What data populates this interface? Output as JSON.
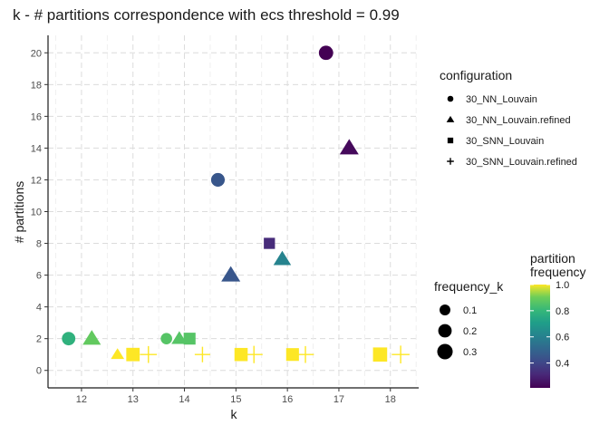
{
  "chart_data": {
    "type": "scatter",
    "title": "k - # partitions correspondence with ecs threshold = 0.99",
    "xlabel": "k",
    "ylabel": "# partitions",
    "xlim": [
      11.35,
      18.55
    ],
    "ylim": [
      -1.1,
      21.1
    ],
    "x_ticks": [
      "12",
      "13",
      "14",
      "15",
      "16",
      "17",
      "18"
    ],
    "y_ticks": [
      "0",
      "2",
      "4",
      "6",
      "8",
      "10",
      "12",
      "14",
      "16",
      "18",
      "20"
    ],
    "grid": true,
    "legend_shape": {
      "title": "configuration",
      "entries": [
        {
          "label": "30_NN_Louvain",
          "shape": "circle"
        },
        {
          "label": "30_NN_Louvain.refined",
          "shape": "triangle"
        },
        {
          "label": "30_SNN_Louvain",
          "shape": "square"
        },
        {
          "label": "30_SNN_Louvain.refined",
          "shape": "plus"
        }
      ]
    },
    "legend_size": {
      "title": "frequency_k",
      "entries": [
        {
          "label": "0.1",
          "value": 0.1
        },
        {
          "label": "0.2",
          "value": 0.2
        },
        {
          "label": "0.3",
          "value": 0.3
        }
      ]
    },
    "legend_color": {
      "title_line1": "partition",
      "title_line2": "frequency",
      "ticks": [
        "0.4",
        "0.6",
        "0.8",
        "1.0"
      ],
      "range": [
        0.21,
        1.0
      ],
      "colormap": "viridis"
    },
    "points": [
      {
        "config": "30_NN_Louvain",
        "x": 16.75,
        "y": 20,
        "freq_k": 0.24,
        "partition_freq": 0.21
      },
      {
        "config": "30_NN_Louvain.refined",
        "x": 17.2,
        "y": 14,
        "freq_k": 0.25,
        "partition_freq": 0.23
      },
      {
        "config": "30_NN_Louvain",
        "x": 14.65,
        "y": 12,
        "freq_k": 0.21,
        "partition_freq": 0.45
      },
      {
        "config": "30_SNN_Louvain",
        "x": 15.65,
        "y": 8,
        "freq_k": 0.13,
        "partition_freq": 0.32
      },
      {
        "config": "30_NN_Louvain.refined",
        "x": 14.9,
        "y": 6,
        "freq_k": 0.25,
        "partition_freq": 0.45
      },
      {
        "config": "30_NN_Louvain.refined",
        "x": 15.9,
        "y": 7,
        "freq_k": 0.2,
        "partition_freq": 0.61
      },
      {
        "config": "30_NN_Louvain",
        "x": 11.75,
        "y": 2,
        "freq_k": 0.2,
        "partition_freq": 0.78
      },
      {
        "config": "30_NN_Louvain.refined",
        "x": 12.2,
        "y": 2,
        "freq_k": 0.22,
        "partition_freq": 0.88
      },
      {
        "config": "30_NN_Louvain.refined",
        "x": 12.7,
        "y": 1,
        "freq_k": 0.08,
        "partition_freq": 1.0
      },
      {
        "config": "30_SNN_Louvain",
        "x": 13.0,
        "y": 1,
        "freq_k": 0.23,
        "partition_freq": 1.0
      },
      {
        "config": "30_SNN_Louvain.refined",
        "x": 13.3,
        "y": 1,
        "freq_k": 0.26,
        "partition_freq": 1.0
      },
      {
        "config": "30_NN_Louvain",
        "x": 13.65,
        "y": 2,
        "freq_k": 0.12,
        "partition_freq": 0.86
      },
      {
        "config": "30_NN_Louvain.refined",
        "x": 13.9,
        "y": 2,
        "freq_k": 0.14,
        "partition_freq": 0.86
      },
      {
        "config": "30_SNN_Louvain",
        "x": 14.1,
        "y": 2,
        "freq_k": 0.16,
        "partition_freq": 0.86
      },
      {
        "config": "30_SNN_Louvain.refined",
        "x": 14.35,
        "y": 1,
        "freq_k": 0.2,
        "partition_freq": 1.0
      },
      {
        "config": "30_SNN_Louvain",
        "x": 15.1,
        "y": 1,
        "freq_k": 0.22,
        "partition_freq": 1.0
      },
      {
        "config": "30_SNN_Louvain.refined",
        "x": 15.35,
        "y": 1,
        "freq_k": 0.28,
        "partition_freq": 1.0
      },
      {
        "config": "30_SNN_Louvain",
        "x": 16.1,
        "y": 1,
        "freq_k": 0.2,
        "partition_freq": 1.0
      },
      {
        "config": "30_SNN_Louvain.refined",
        "x": 16.35,
        "y": 1,
        "freq_k": 0.26,
        "partition_freq": 1.0
      },
      {
        "config": "30_SNN_Louvain",
        "x": 17.8,
        "y": 1,
        "freq_k": 0.27,
        "partition_freq": 1.0
      },
      {
        "config": "30_SNN_Louvain.refined",
        "x": 18.2,
        "y": 1,
        "freq_k": 0.3,
        "partition_freq": 1.0
      }
    ]
  }
}
